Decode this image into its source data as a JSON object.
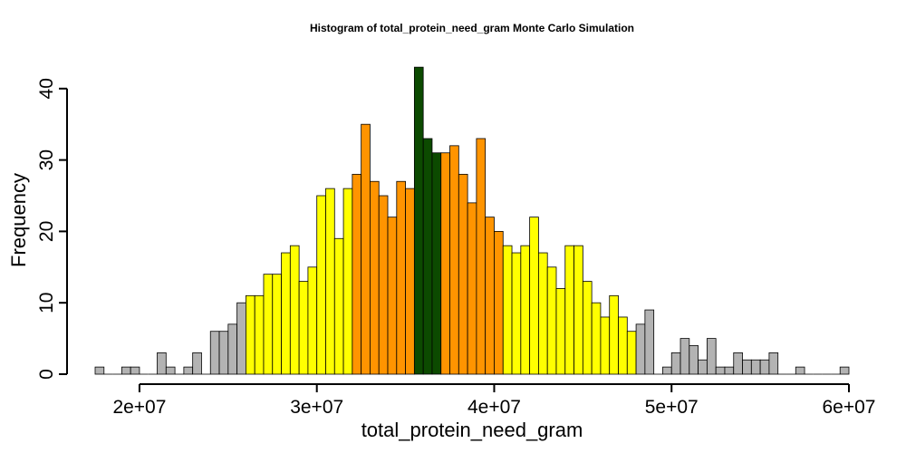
{
  "chart_data": {
    "type": "bar",
    "title": "Histogram of  total_protein_need_gram  Monte Carlo Simulation",
    "xlabel": "total_protein_need_gram",
    "ylabel": "Frequency",
    "xlim": [
      17500000,
      60000000
    ],
    "ylim": [
      0,
      43
    ],
    "bin_width": 500000,
    "x_ticks": [
      20000000,
      30000000,
      40000000,
      50000000,
      60000000
    ],
    "x_tick_labels": [
      "2e+07",
      "3e+07",
      "4e+07",
      "5e+07",
      "6e+07"
    ],
    "y_ticks": [
      0,
      10,
      20,
      30,
      40
    ],
    "y_tick_labels": [
      "0",
      "10",
      "20",
      "30",
      "40"
    ],
    "grid": false,
    "legend": "none",
    "colors": {
      "gray": "#B3B3B3",
      "yellow": "#FFFF00",
      "orange": "#FF9400",
      "green": "#0C4A00"
    },
    "bins": [
      {
        "x_start": 17500000,
        "x_end": 18000000,
        "count": 1,
        "color": "gray"
      },
      {
        "x_start": 18000000,
        "x_end": 18500000,
        "count": 0,
        "color": "gray"
      },
      {
        "x_start": 18500000,
        "x_end": 19000000,
        "count": 0,
        "color": "gray"
      },
      {
        "x_start": 19000000,
        "x_end": 19500000,
        "count": 1,
        "color": "gray"
      },
      {
        "x_start": 19500000,
        "x_end": 20000000,
        "count": 1,
        "color": "gray"
      },
      {
        "x_start": 20000000,
        "x_end": 20500000,
        "count": 0,
        "color": "gray"
      },
      {
        "x_start": 20500000,
        "x_end": 21000000,
        "count": 0,
        "color": "gray"
      },
      {
        "x_start": 21000000,
        "x_end": 21500000,
        "count": 3,
        "color": "gray"
      },
      {
        "x_start": 21500000,
        "x_end": 22000000,
        "count": 1,
        "color": "gray"
      },
      {
        "x_start": 22000000,
        "x_end": 22500000,
        "count": 0,
        "color": "gray"
      },
      {
        "x_start": 22500000,
        "x_end": 23000000,
        "count": 1,
        "color": "gray"
      },
      {
        "x_start": 23000000,
        "x_end": 23500000,
        "count": 3,
        "color": "gray"
      },
      {
        "x_start": 23500000,
        "x_end": 24000000,
        "count": 0,
        "color": "gray"
      },
      {
        "x_start": 24000000,
        "x_end": 24500000,
        "count": 6,
        "color": "gray"
      },
      {
        "x_start": 24500000,
        "x_end": 25000000,
        "count": 6,
        "color": "gray"
      },
      {
        "x_start": 25000000,
        "x_end": 25500000,
        "count": 7,
        "color": "gray"
      },
      {
        "x_start": 25500000,
        "x_end": 26000000,
        "count": 10,
        "color": "gray"
      },
      {
        "x_start": 26000000,
        "x_end": 26500000,
        "count": 11,
        "color": "yellow"
      },
      {
        "x_start": 26500000,
        "x_end": 27000000,
        "count": 11,
        "color": "yellow"
      },
      {
        "x_start": 27000000,
        "x_end": 27500000,
        "count": 14,
        "color": "yellow"
      },
      {
        "x_start": 27500000,
        "x_end": 28000000,
        "count": 14,
        "color": "yellow"
      },
      {
        "x_start": 28000000,
        "x_end": 28500000,
        "count": 17,
        "color": "yellow"
      },
      {
        "x_start": 28500000,
        "x_end": 29000000,
        "count": 18,
        "color": "yellow"
      },
      {
        "x_start": 29000000,
        "x_end": 29500000,
        "count": 13,
        "color": "yellow"
      },
      {
        "x_start": 29500000,
        "x_end": 30000000,
        "count": 15,
        "color": "yellow"
      },
      {
        "x_start": 30000000,
        "x_end": 30500000,
        "count": 25,
        "color": "yellow"
      },
      {
        "x_start": 30500000,
        "x_end": 31000000,
        "count": 26,
        "color": "yellow"
      },
      {
        "x_start": 31000000,
        "x_end": 31500000,
        "count": 19,
        "color": "yellow"
      },
      {
        "x_start": 31500000,
        "x_end": 32000000,
        "count": 26,
        "color": "yellow"
      },
      {
        "x_start": 32000000,
        "x_end": 32500000,
        "count": 28,
        "color": "orange"
      },
      {
        "x_start": 32500000,
        "x_end": 33000000,
        "count": 35,
        "color": "orange"
      },
      {
        "x_start": 33000000,
        "x_end": 33500000,
        "count": 27,
        "color": "orange"
      },
      {
        "x_start": 33500000,
        "x_end": 34000000,
        "count": 25,
        "color": "orange"
      },
      {
        "x_start": 34000000,
        "x_end": 34500000,
        "count": 22,
        "color": "orange"
      },
      {
        "x_start": 34500000,
        "x_end": 35000000,
        "count": 27,
        "color": "orange"
      },
      {
        "x_start": 35000000,
        "x_end": 35500000,
        "count": 26,
        "color": "orange"
      },
      {
        "x_start": 35500000,
        "x_end": 36000000,
        "count": 43,
        "color": "green"
      },
      {
        "x_start": 36000000,
        "x_end": 36500000,
        "count": 33,
        "color": "green"
      },
      {
        "x_start": 36500000,
        "x_end": 37000000,
        "count": 31,
        "color": "green"
      },
      {
        "x_start": 37000000,
        "x_end": 37500000,
        "count": 31,
        "color": "orange"
      },
      {
        "x_start": 37500000,
        "x_end": 38000000,
        "count": 32,
        "color": "orange"
      },
      {
        "x_start": 38000000,
        "x_end": 38500000,
        "count": 28,
        "color": "orange"
      },
      {
        "x_start": 38500000,
        "x_end": 39000000,
        "count": 24,
        "color": "orange"
      },
      {
        "x_start": 39000000,
        "x_end": 39500000,
        "count": 33,
        "color": "orange"
      },
      {
        "x_start": 39500000,
        "x_end": 40000000,
        "count": 22,
        "color": "orange"
      },
      {
        "x_start": 40000000,
        "x_end": 40500000,
        "count": 20,
        "color": "orange"
      },
      {
        "x_start": 40500000,
        "x_end": 41000000,
        "count": 18,
        "color": "yellow"
      },
      {
        "x_start": 41000000,
        "x_end": 41500000,
        "count": 17,
        "color": "yellow"
      },
      {
        "x_start": 41500000,
        "x_end": 42000000,
        "count": 18,
        "color": "yellow"
      },
      {
        "x_start": 42000000,
        "x_end": 42500000,
        "count": 22,
        "color": "yellow"
      },
      {
        "x_start": 42500000,
        "x_end": 43000000,
        "count": 17,
        "color": "yellow"
      },
      {
        "x_start": 43000000,
        "x_end": 43500000,
        "count": 15,
        "color": "yellow"
      },
      {
        "x_start": 43500000,
        "x_end": 44000000,
        "count": 12,
        "color": "yellow"
      },
      {
        "x_start": 44000000,
        "x_end": 44500000,
        "count": 18,
        "color": "yellow"
      },
      {
        "x_start": 44500000,
        "x_end": 45000000,
        "count": 18,
        "color": "yellow"
      },
      {
        "x_start": 45000000,
        "x_end": 45500000,
        "count": 13,
        "color": "yellow"
      },
      {
        "x_start": 45500000,
        "x_end": 46000000,
        "count": 10,
        "color": "yellow"
      },
      {
        "x_start": 46000000,
        "x_end": 46500000,
        "count": 8,
        "color": "yellow"
      },
      {
        "x_start": 46500000,
        "x_end": 47000000,
        "count": 11,
        "color": "yellow"
      },
      {
        "x_start": 47000000,
        "x_end": 47500000,
        "count": 8,
        "color": "yellow"
      },
      {
        "x_start": 47500000,
        "x_end": 48000000,
        "count": 6,
        "color": "yellow"
      },
      {
        "x_start": 48000000,
        "x_end": 48500000,
        "count": 7,
        "color": "gray"
      },
      {
        "x_start": 48500000,
        "x_end": 49000000,
        "count": 9,
        "color": "gray"
      },
      {
        "x_start": 49000000,
        "x_end": 49500000,
        "count": 0,
        "color": "gray"
      },
      {
        "x_start": 49500000,
        "x_end": 50000000,
        "count": 1,
        "color": "gray"
      },
      {
        "x_start": 50000000,
        "x_end": 50500000,
        "count": 3,
        "color": "gray"
      },
      {
        "x_start": 50500000,
        "x_end": 51000000,
        "count": 5,
        "color": "gray"
      },
      {
        "x_start": 51000000,
        "x_end": 51500000,
        "count": 4,
        "color": "gray"
      },
      {
        "x_start": 51500000,
        "x_end": 52000000,
        "count": 2,
        "color": "gray"
      },
      {
        "x_start": 52000000,
        "x_end": 52500000,
        "count": 5,
        "color": "gray"
      },
      {
        "x_start": 52500000,
        "x_end": 53000000,
        "count": 1,
        "color": "gray"
      },
      {
        "x_start": 53000000,
        "x_end": 53500000,
        "count": 1,
        "color": "gray"
      },
      {
        "x_start": 53500000,
        "x_end": 54000000,
        "count": 3,
        "color": "gray"
      },
      {
        "x_start": 54000000,
        "x_end": 54500000,
        "count": 2,
        "color": "gray"
      },
      {
        "x_start": 54500000,
        "x_end": 55000000,
        "count": 2,
        "color": "gray"
      },
      {
        "x_start": 55000000,
        "x_end": 55500000,
        "count": 2,
        "color": "gray"
      },
      {
        "x_start": 55500000,
        "x_end": 56000000,
        "count": 3,
        "color": "gray"
      },
      {
        "x_start": 56000000,
        "x_end": 56500000,
        "count": 0,
        "color": "gray"
      },
      {
        "x_start": 56500000,
        "x_end": 57000000,
        "count": 0,
        "color": "gray"
      },
      {
        "x_start": 57000000,
        "x_end": 57500000,
        "count": 1,
        "color": "gray"
      },
      {
        "x_start": 57500000,
        "x_end": 58000000,
        "count": 0,
        "color": "gray"
      },
      {
        "x_start": 58000000,
        "x_end": 58500000,
        "count": 0,
        "color": "gray"
      },
      {
        "x_start": 58500000,
        "x_end": 59000000,
        "count": 0,
        "color": "gray"
      },
      {
        "x_start": 59000000,
        "x_end": 59500000,
        "count": 0,
        "color": "gray"
      },
      {
        "x_start": 59500000,
        "x_end": 60000000,
        "count": 1,
        "color": "gray"
      }
    ]
  }
}
